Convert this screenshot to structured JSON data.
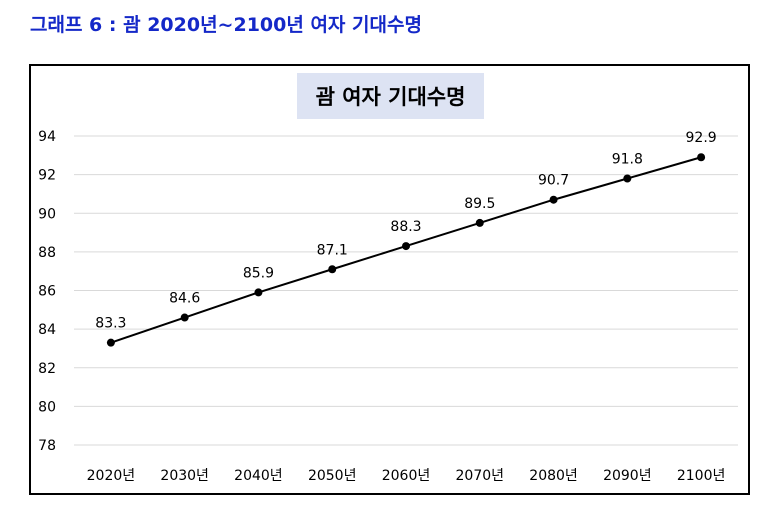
{
  "caption": "그래프 6 : 괌 2020년~2100년 여자 기대수명",
  "chart_data": {
    "type": "line",
    "title": "괌 여자 기대수명",
    "categories": [
      "2020년",
      "2030년",
      "2040년",
      "2050년",
      "2060년",
      "2070년",
      "2080년",
      "2090년",
      "2100년"
    ],
    "series": [
      {
        "values": [
          83.3,
          84.6,
          85.9,
          87.1,
          88.3,
          89.5,
          90.7,
          91.8,
          92.9
        ]
      }
    ],
    "data_labels": [
      "83.3",
      "84.6",
      "85.9",
      "87.1",
      "88.3",
      "89.5",
      "90.7",
      "91.8",
      "92.9"
    ],
    "y_ticks": [
      "78",
      "80",
      "82",
      "84",
      "86",
      "88",
      "90",
      "92",
      "94"
    ],
    "ylim": [
      78,
      94
    ],
    "grid": true,
    "legend": "none",
    "line_color": "#000000",
    "grid_color": "#d9d9d9"
  }
}
